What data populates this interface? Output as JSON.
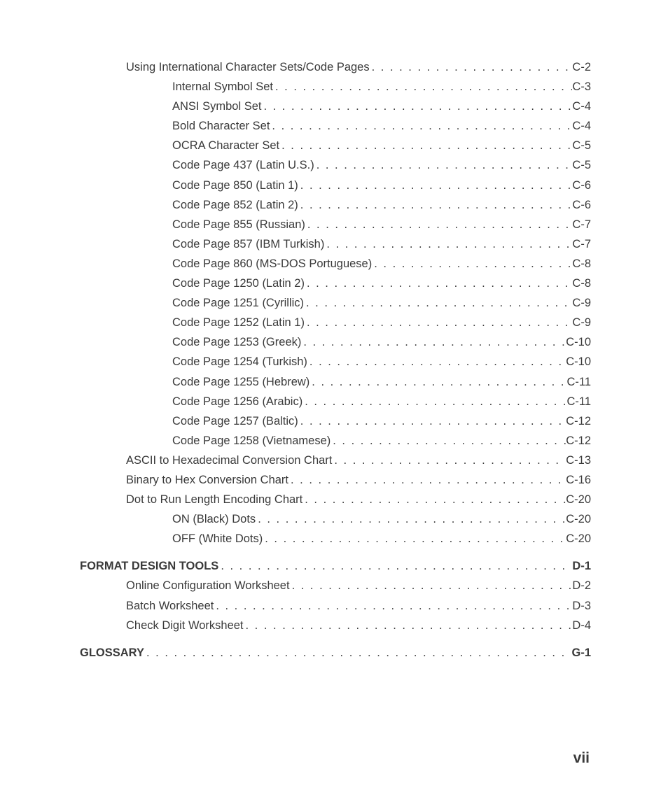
{
  "text_color": "#3a3a3a",
  "background_color": "#ffffff",
  "font_family": "Arial, Helvetica, sans-serif",
  "base_font_size_pt": 12,
  "page_number": "vii",
  "toc": [
    {
      "label": "Using International Character Sets/Code Pages",
      "page": "C-2",
      "indent": 1,
      "bold": false
    },
    {
      "label": "Internal Symbol Set",
      "page": "C-3",
      "indent": 2,
      "bold": false
    },
    {
      "label": "ANSI Symbol Set",
      "page": "C-4",
      "indent": 2,
      "bold": false
    },
    {
      "label": "Bold Character Set",
      "page": "C-4",
      "indent": 2,
      "bold": false
    },
    {
      "label": "OCRA Character Set",
      "page": "C-5",
      "indent": 2,
      "bold": false
    },
    {
      "label": "Code Page 437 (Latin U.S.)",
      "page": "C-5",
      "indent": 2,
      "bold": false
    },
    {
      "label": "Code Page 850 (Latin 1)",
      "page": "C-6",
      "indent": 2,
      "bold": false
    },
    {
      "label": "Code Page 852 (Latin 2)",
      "page": "C-6",
      "indent": 2,
      "bold": false
    },
    {
      "label": "Code Page 855 (Russian)",
      "page": "C-7",
      "indent": 2,
      "bold": false
    },
    {
      "label": "Code Page 857 (IBM Turkish)",
      "page": "C-7",
      "indent": 2,
      "bold": false
    },
    {
      "label": "Code Page 860 (MS-DOS Portuguese)",
      "page": "C-8",
      "indent": 2,
      "bold": false
    },
    {
      "label": "Code Page 1250 (Latin 2)",
      "page": "C-8",
      "indent": 2,
      "bold": false
    },
    {
      "label": "Code Page 1251 (Cyrillic)",
      "page": "C-9",
      "indent": 2,
      "bold": false
    },
    {
      "label": "Code Page 1252 (Latin 1)",
      "page": "C-9",
      "indent": 2,
      "bold": false
    },
    {
      "label": "Code Page 1253 (Greek)",
      "page": "C-10",
      "indent": 2,
      "bold": false
    },
    {
      "label": "Code Page 1254 (Turkish)",
      "page": "C-10",
      "indent": 2,
      "bold": false
    },
    {
      "label": "Code Page 1255 (Hebrew)",
      "page": "C-11",
      "indent": 2,
      "bold": false
    },
    {
      "label": "Code Page 1256 (Arabic)",
      "page": "C-11",
      "indent": 2,
      "bold": false
    },
    {
      "label": "Code Page 1257 (Baltic)",
      "page": "C-12",
      "indent": 2,
      "bold": false
    },
    {
      "label": "Code Page 1258 (Vietnamese)",
      "page": "C-12",
      "indent": 2,
      "bold": false
    },
    {
      "label": "ASCII to Hexadecimal Conversion Chart",
      "page": "C-13",
      "indent": 1,
      "bold": false
    },
    {
      "label": "Binary to Hex Conversion Chart",
      "page": "C-16",
      "indent": 1,
      "bold": false
    },
    {
      "label": "Dot to Run Length Encoding Chart",
      "page": "C-20",
      "indent": 1,
      "bold": false
    },
    {
      "label": "ON (Black) Dots",
      "page": "C-20",
      "indent": 2,
      "bold": false
    },
    {
      "label": "OFF (White Dots)",
      "page": "C-20",
      "indent": 2,
      "bold": false
    },
    {
      "gap": true
    },
    {
      "label": "FORMAT DESIGN TOOLS",
      "page": "D-1",
      "indent": 0,
      "bold": true
    },
    {
      "label": "Online Configuration Worksheet",
      "page": "D-2",
      "indent": 1,
      "bold": false
    },
    {
      "label": "Batch Worksheet",
      "page": "D-3",
      "indent": 1,
      "bold": false
    },
    {
      "label": "Check Digit Worksheet",
      "page": "D-4",
      "indent": 1,
      "bold": false
    },
    {
      "gap": true
    },
    {
      "label": "GLOSSARY",
      "page": "G-1",
      "indent": 0,
      "bold": true
    }
  ]
}
